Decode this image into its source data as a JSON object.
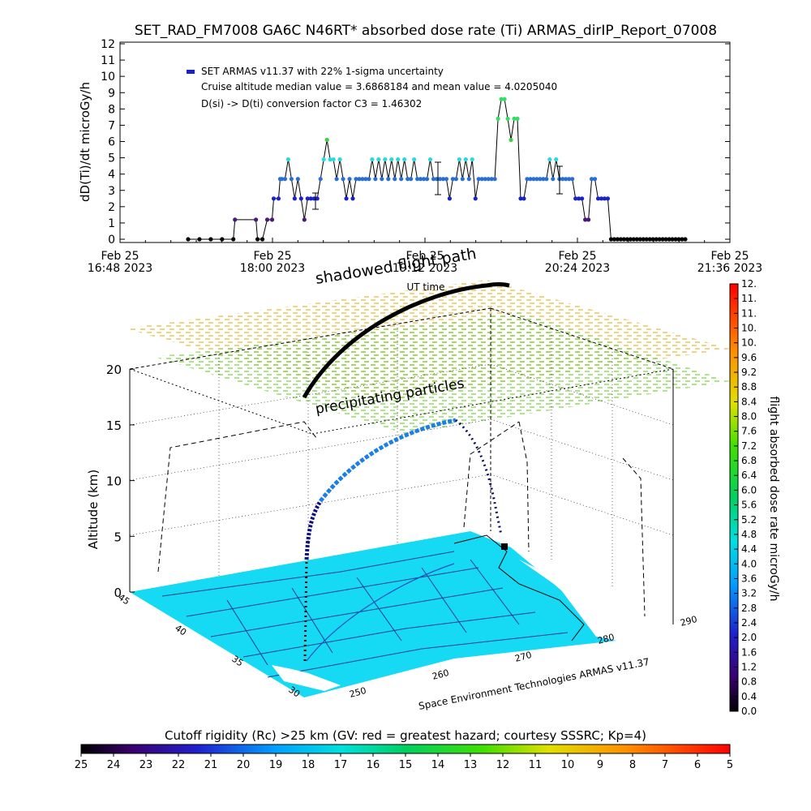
{
  "title": "SET_RAD_FM7008  GA6C N46RT* absorbed dose rate (Ti) ARMAS_dirIP_Report_07008",
  "chart_data": [
    {
      "type": "scatter",
      "ylabel": "dD(Ti)/dt microGy/h",
      "xlabel": "UT time",
      "ylim": [
        0,
        12
      ],
      "yticks": [
        "0",
        "1",
        "2",
        "3",
        "4",
        "5",
        "6",
        "7",
        "8",
        "9",
        "10",
        "11",
        "12"
      ],
      "xticks": [
        {
          "date": "Feb 25",
          "time": "16:48 2023"
        },
        {
          "date": "Feb 25",
          "time": "18:00 2023"
        },
        {
          "date": "Feb 25",
          "time": "19:12 2023"
        },
        {
          "date": "Feb 25",
          "time": "20:24 2023"
        },
        {
          "date": "Feb 25",
          "time": "21:36 2023"
        }
      ],
      "legend": "SET ARMAS v11.37 with 22% 1-sigma uncertainty",
      "annotations": [
        "Cruise altitude median value = 3.6868184 and mean value = 4.0205040",
        "D(si) -> D(ti) conversion factor C3 = 1.46302"
      ],
      "series": [
        {
          "name": "SET ARMAS v11.37 with 22% 1-sigma uncertainty",
          "x_minutes_utc": [
            1048,
            1055,
            1062,
            1069,
            1076,
            1077,
            1090,
            1091,
            1094,
            1097,
            1100,
            1101,
            1104,
            1105,
            1106,
            1108,
            1110,
            1112,
            1114,
            1116,
            1118,
            1120,
            1122,
            1124,
            1126,
            1128,
            1130,
            1132,
            1134,
            1136,
            1138,
            1140,
            1142,
            1144,
            1146,
            1148,
            1150,
            1152,
            1154,
            1156,
            1158,
            1160,
            1162,
            1164,
            1166,
            1168,
            1170,
            1172,
            1174,
            1176,
            1178,
            1180,
            1182,
            1184,
            1186,
            1188,
            1190,
            1192,
            1194,
            1196,
            1198,
            1200,
            1202,
            1204,
            1206,
            1208,
            1210,
            1212,
            1214,
            1216,
            1218,
            1220,
            1222,
            1224,
            1226,
            1228,
            1230,
            1232,
            1234,
            1236,
            1238,
            1240,
            1242,
            1244,
            1246,
            1248,
            1250,
            1252,
            1254,
            1256,
            1258,
            1260,
            1262,
            1264,
            1266,
            1268,
            1270,
            1272,
            1274,
            1276,
            1278,
            1280,
            1282,
            1284,
            1286,
            1288,
            1290,
            1292,
            1294,
            1296,
            1298,
            1300,
            1302,
            1304,
            1306,
            1308,
            1310,
            1312,
            1314,
            1316,
            1318,
            1320,
            1322,
            1324,
            1326,
            1328,
            1330,
            1332,
            1334,
            1336,
            1338,
            1340,
            1342,
            1344,
            1346,
            1348,
            1350,
            1352,
            1354,
            1356
          ],
          "y": [
            0,
            0,
            0,
            0,
            0,
            1.2,
            1.2,
            0,
            0,
            1.2,
            1.2,
            2.5,
            2.5,
            3.7,
            3.7,
            3.7,
            4.9,
            3.7,
            2.5,
            3.7,
            2.5,
            1.2,
            2.5,
            2.5,
            2.5,
            2.5,
            3.7,
            4.9,
            6.1,
            4.9,
            4.9,
            3.7,
            4.9,
            3.7,
            2.5,
            3.7,
            2.5,
            3.7,
            3.7,
            3.7,
            3.7,
            3.7,
            4.9,
            3.7,
            4.9,
            3.7,
            4.9,
            3.7,
            4.9,
            3.7,
            4.9,
            3.7,
            4.9,
            3.7,
            3.7,
            4.9,
            3.7,
            3.7,
            3.7,
            3.7,
            4.9,
            3.7,
            3.7,
            3.7,
            3.7,
            3.7,
            2.5,
            3.7,
            3.7,
            4.9,
            3.7,
            4.9,
            3.7,
            4.9,
            2.5,
            3.7,
            3.7,
            3.7,
            3.7,
            3.7,
            3.7,
            7.4,
            8.6,
            8.6,
            7.4,
            6.1,
            7.4,
            7.4,
            2.5,
            2.5,
            3.7,
            3.7,
            3.7,
            3.7,
            3.7,
            3.7,
            3.7,
            4.9,
            3.7,
            4.9,
            3.7,
            3.7,
            3.7,
            3.7,
            3.7,
            2.5,
            2.5,
            2.5,
            1.2,
            1.2,
            3.7,
            3.7,
            2.5,
            2.5,
            2.5,
            2.5,
            0,
            0,
            0,
            0,
            0,
            0,
            0,
            0,
            0,
            0,
            0,
            0,
            0,
            0,
            0,
            0,
            0,
            0,
            0,
            0,
            0,
            0,
            0,
            0
          ]
        }
      ]
    },
    {
      "type": "3d-trajectory",
      "ylabel": "Altitude (km)",
      "zticks": [
        "0",
        "5",
        "10",
        "15",
        "20"
      ],
      "lat_ticks": [
        "45",
        "40",
        "35",
        "30"
      ],
      "lon_ticks": [
        "250",
        "260",
        "270",
        "280",
        "290"
      ],
      "labels": {
        "shadowed": "shadowed flight path",
        "precip": "precipitating particles",
        "credit": "Space Environment Technologies ARMAS v11.37"
      }
    },
    {
      "type": "colorbar",
      "label": "flight absorbed dose rate microGy/h",
      "ticks": [
        "0.0",
        "0.4",
        "0.8",
        "1.2",
        "1.6",
        "2.0",
        "2.4",
        "2.8",
        "3.2",
        "3.6",
        "4.0",
        "4.4",
        "4.8",
        "5.2",
        "5.6",
        "6.0",
        "6.4",
        "6.8",
        "7.2",
        "7.6",
        "8.0",
        "8.4",
        "8.8",
        "9.2",
        "9.6",
        "10.",
        "10.",
        "11.",
        "11.",
        "12."
      ]
    },
    {
      "type": "colorbar",
      "label": "Cutoff rigidity (Rc) >25 km (GV: red = greatest hazard; courtesy SSSRC; Kp=4)",
      "ticks": [
        "25",
        "24",
        "23",
        "22",
        "21",
        "20",
        "19",
        "18",
        "17",
        "16",
        "15",
        "14",
        "13",
        "12",
        "11",
        "10",
        "9",
        "8",
        "7",
        "6",
        "5"
      ]
    }
  ]
}
